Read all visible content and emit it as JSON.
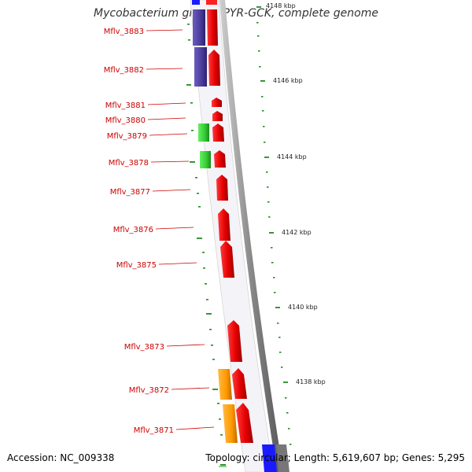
{
  "title": "Mycobacterium gilvum PYR-GCK, complete genome",
  "footer": {
    "accession": "Accession: NC_009338",
    "topology": "Topology: circular; Length: 5,619,607 bp; Genes: 5,295"
  },
  "colors": {
    "gene_forward": "#e60000",
    "gene_reverse_blue": "#4b3c9a",
    "gene_green": "#33cc33",
    "gene_orange": "#ff9900",
    "tick": "#228b22",
    "label": "#cc0000",
    "backbone": "#888888"
  },
  "genes": [
    {
      "label": "Mflv_3883"
    },
    {
      "label": "Mflv_3882"
    },
    {
      "label": "Mflv_3881"
    },
    {
      "label": "Mflv_3880"
    },
    {
      "label": "Mflv_3879"
    },
    {
      "label": "Mflv_3878"
    },
    {
      "label": "Mflv_3877"
    },
    {
      "label": "Mflv_3876"
    },
    {
      "label": "Mflv_3875"
    },
    {
      "label": "Mflv_3873"
    },
    {
      "label": "Mflv_3872"
    },
    {
      "label": "Mflv_3871"
    }
  ],
  "kbp_ticks": [
    {
      "label": "4148 kbp"
    },
    {
      "label": "4146 kbp"
    },
    {
      "label": "4144 kbp"
    },
    {
      "label": "4142 kbp"
    },
    {
      "label": "4140 kbp"
    },
    {
      "label": "4138 kbp"
    }
  ]
}
